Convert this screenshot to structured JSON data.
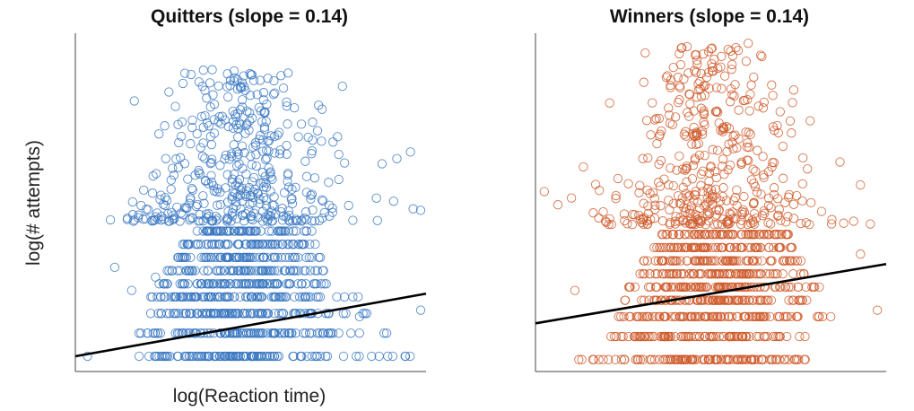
{
  "chart_data": [
    {
      "type": "scatter",
      "title": "Quitters (slope = 0.14)",
      "xlabel": "log(Reaction time)",
      "ylabel": "log(# attempts)",
      "slope": 0.14,
      "color": "#3a78c2",
      "fit_line_color": "#000000",
      "marker": "open-circle",
      "grid": false,
      "ticks_shown": false,
      "x_range": [
        0,
        1
      ],
      "y_range": [
        0,
        1
      ],
      "fit_line": {
        "x": [
          0,
          1
        ],
        "y": [
          0.03,
          0.22
        ]
      },
      "point_summary": {
        "n_approx": "thousands",
        "x_center": 0.47,
        "x_spread": 0.18,
        "discrete_y_levels": [
          0.03,
          0.1,
          0.16,
          0.21,
          0.25,
          0.29,
          0.33,
          0.37,
          0.41
        ],
        "level_x_extents": [
          [
            0.17,
            0.97
          ],
          [
            0.17,
            0.9
          ],
          [
            0.17,
            0.85
          ],
          [
            0.2,
            0.82
          ],
          [
            0.23,
            0.76
          ],
          [
            0.25,
            0.73
          ],
          [
            0.27,
            0.71
          ],
          [
            0.3,
            0.7
          ],
          [
            0.33,
            0.69
          ]
        ],
        "upper_cloud_y_range": [
          0.44,
          0.9
        ]
      },
      "outliers": [
        [
          0.02,
          0.03
        ],
        [
          0.1,
          0.3
        ],
        [
          0.15,
          0.23
        ],
        [
          0.25,
          0.63
        ],
        [
          0.38,
          0.86
        ],
        [
          0.61,
          0.89
        ],
        [
          0.77,
          0.85
        ],
        [
          0.93,
          0.63
        ],
        [
          0.97,
          0.65
        ],
        [
          0.87,
          0.51
        ],
        [
          1.0,
          0.17
        ],
        [
          0.82,
          0.15
        ],
        [
          0.22,
          0.27
        ],
        [
          0.3,
          0.46
        ],
        [
          0.71,
          0.78
        ]
      ]
    },
    {
      "type": "scatter",
      "title": "Winners (slope = 0.14)",
      "xlabel": "",
      "ylabel": "",
      "slope": 0.14,
      "color": "#cf5a2a",
      "fit_line_color": "#000000",
      "marker": "open-circle",
      "grid": false,
      "ticks_shown": false,
      "x_range": [
        0,
        1
      ],
      "y_range": [
        0,
        1
      ],
      "fit_line": {
        "x": [
          0,
          1
        ],
        "y": [
          0.13,
          0.31
        ]
      },
      "point_summary": {
        "n_approx": "thousands",
        "x_center": 0.5,
        "x_spread": 0.17,
        "discrete_y_levels": [
          0.02,
          0.09,
          0.15,
          0.2,
          0.24,
          0.28,
          0.32,
          0.36,
          0.4
        ],
        "level_x_extents": [
          [
            0.11,
            0.85
          ],
          [
            0.2,
            0.82
          ],
          [
            0.22,
            0.87
          ],
          [
            0.24,
            0.85
          ],
          [
            0.25,
            0.82
          ],
          [
            0.28,
            0.8
          ],
          [
            0.3,
            0.78
          ],
          [
            0.32,
            0.75
          ],
          [
            0.34,
            0.73
          ]
        ],
        "upper_cloud_y_range": [
          0.43,
          0.97
        ]
      },
      "outliers": [
        [
          0.01,
          0.53
        ],
        [
          0.05,
          0.49
        ],
        [
          0.17,
          0.45
        ],
        [
          0.43,
          0.97
        ],
        [
          0.61,
          0.98
        ],
        [
          0.65,
          0.94
        ],
        [
          0.74,
          0.8
        ],
        [
          0.88,
          0.62
        ],
        [
          0.94,
          0.55
        ],
        [
          0.99,
          0.17
        ],
        [
          0.94,
          0.34
        ],
        [
          0.1,
          0.23
        ],
        [
          0.92,
          0.44
        ],
        [
          0.3,
          0.63
        ]
      ]
    }
  ]
}
